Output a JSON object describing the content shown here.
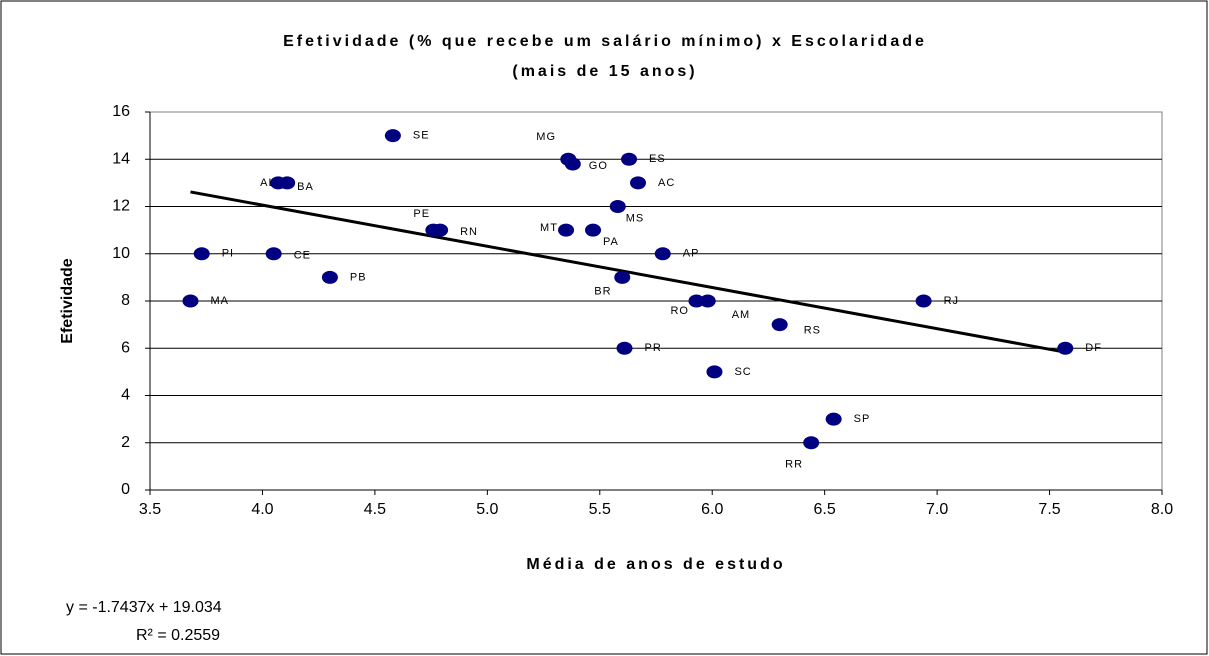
{
  "chart_data": {
    "type": "scatter",
    "title": [
      "Efetividade (% que recebe um salário mínimo) x Escolaridade",
      "(mais de 15 anos)"
    ],
    "x_label": "Média de anos de estudo",
    "y_label": "Efetividade",
    "labels": [
      "SE",
      "MG",
      "GO",
      "ES",
      "AL",
      "BA",
      "AC",
      "PE",
      "RN",
      "MS",
      "MT",
      "PA",
      "AP",
      "PI",
      "CE",
      "PB",
      "BR",
      "MA",
      "RO",
      "AM",
      "RJ",
      "RS",
      "DF",
      "PR",
      "SC",
      "SP",
      "RR"
    ],
    "x": [
      4.58,
      5.36,
      5.38,
      5.63,
      4.07,
      4.11,
      5.67,
      4.76,
      4.79,
      5.58,
      5.35,
      5.47,
      5.78,
      3.73,
      4.05,
      4.3,
      5.6,
      3.68,
      5.93,
      5.98,
      6.94,
      6.3,
      7.57,
      5.61,
      6.01,
      6.54,
      6.44
    ],
    "y": [
      15,
      14,
      13.8,
      14,
      13,
      13,
      13,
      11,
      11,
      12,
      11,
      11,
      10,
      10,
      10,
      9,
      9,
      8,
      8,
      8,
      8,
      7,
      6,
      6,
      5,
      3,
      2
    ],
    "color": "#000080",
    "xlim": [
      3.5,
      8.0
    ],
    "xticks": [
      3.5,
      {
        "value": 4,
        "label": "4.0"
      },
      4.5,
      {
        "value": 5,
        "label": "5.0"
      },
      5.5,
      {
        "value": 6,
        "label": "6.0"
      },
      6.5,
      {
        "value": 7,
        "label": "7.0"
      },
      7.5,
      {
        "value": 8,
        "label": "8.0"
      }
    ],
    "ylim": [
      0,
      16
    ],
    "yticks": [
      0,
      2,
      4,
      6,
      8,
      10,
      12,
      14,
      16
    ],
    "grid": true,
    "trendline": {
      "slope": -1.7437,
      "intercept": 19.034,
      "equation": "y = -1.7437x + 19.034",
      "r2": "R² = 0.2559"
    }
  }
}
